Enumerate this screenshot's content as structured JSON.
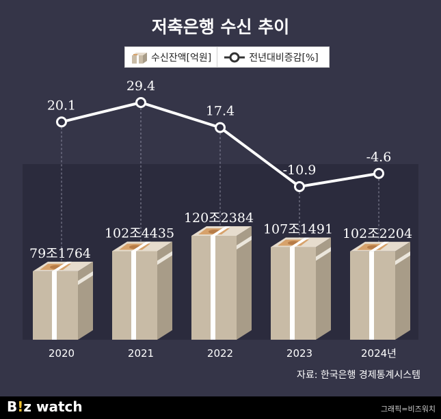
{
  "title": "저축은행 수신 추이",
  "legend": {
    "deposit_label": "수신잔액[억원]",
    "growth_label": "전년대비증감[%]"
  },
  "colors": {
    "background": "#353548",
    "plot_panel": "#2b2b3d",
    "line": "#ffffff",
    "box_front": "#c8bba6",
    "box_side": "#a89c88",
    "box_top": "#e6dccd",
    "band": "#ffffff",
    "bill": "#d7a26b"
  },
  "chart_data": {
    "type": "bar+line",
    "categories": [
      "2020",
      "2021",
      "2022",
      "2023",
      "2024년"
    ],
    "series": [
      {
        "name": "수신잔액[억원]",
        "type": "bar",
        "values": [
          791764,
          1024435,
          1202384,
          1071491,
          1022204
        ],
        "labels": [
          "79조1764",
          "102조4435",
          "120조2384",
          "107조1491",
          "102조2204"
        ]
      },
      {
        "name": "전년대비증감[%]",
        "type": "line",
        "values": [
          20.1,
          29.4,
          17.4,
          -10.9,
          -4.6
        ],
        "labels": [
          "20.1",
          "29.4",
          "17.4",
          "-10.9",
          "-4.6"
        ]
      }
    ],
    "bar_ylim": [
      0,
      1500000
    ],
    "line_ylim": [
      -15,
      35
    ]
  },
  "source": "자료: 한국은행 경제통계시스템",
  "footer": {
    "logo_b": "B",
    "logo_bang": "!",
    "logo_z": "z",
    "logo_watch": " watch",
    "credit": "그래픽=비즈워치"
  }
}
